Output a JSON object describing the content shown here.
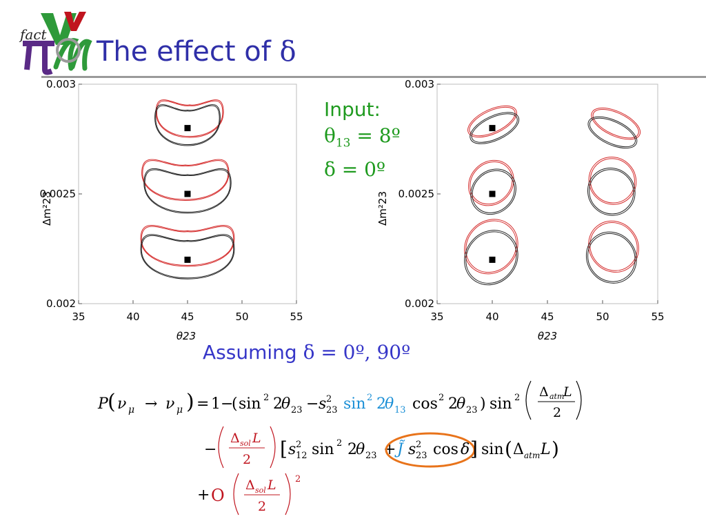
{
  "slide": {
    "title_prefix": "The effect of ",
    "title_symbol": "δ",
    "logo_text": "fact",
    "colors": {
      "title": "#2f2fa8",
      "accent_red": "#c0141e",
      "input_green": "#1e9a1e",
      "sin_highlight": "#1a8fd6",
      "circle_orange": "#e8731a",
      "rule": "#9a9a9a"
    }
  },
  "input": {
    "heading": "Input:",
    "theta_symbol": "θ",
    "theta_sub": "13",
    "theta_rest": " = 8º",
    "delta_line": "δ = 0º"
  },
  "assuming": {
    "label": "Assuming ",
    "math": "δ =  0º, 90º"
  },
  "chart_data": [
    {
      "type": "scatter",
      "title": "",
      "xlabel": "θ23",
      "ylabel": "Δm²23",
      "xlim": [
        35,
        55
      ],
      "ylim": [
        0.002,
        0.003
      ],
      "xticks": [
        "35",
        "40",
        "45",
        "50",
        "55"
      ],
      "yticks": [
        "0.002",
        "0.0025",
        "0.003"
      ],
      "points": [
        {
          "x": 45,
          "y": 0.0028
        },
        {
          "x": 45,
          "y": 0.0025
        },
        {
          "x": 45,
          "y": 0.0022
        }
      ],
      "contours": [
        {
          "color": "red",
          "shape": "bean",
          "cx": 45.2,
          "cy": 0.00284,
          "rx": 3.1,
          "ry": 0.00011
        },
        {
          "color": "black",
          "shape": "bean",
          "cx": 45.0,
          "cy": 0.00281,
          "rx": 3.0,
          "ry": 0.00012
        },
        {
          "color": "red",
          "shape": "bean",
          "cx": 44.8,
          "cy": 0.00256,
          "rx": 4.0,
          "ry": 0.00012
        },
        {
          "color": "black",
          "shape": "bean",
          "cx": 45.0,
          "cy": 0.00251,
          "rx": 4.0,
          "ry": 0.00013
        },
        {
          "color": "red",
          "shape": "bean",
          "cx": 45.0,
          "cy": 0.00226,
          "rx": 4.3,
          "ry": 0.00012
        },
        {
          "color": "black",
          "shape": "bean",
          "cx": 45.0,
          "cy": 0.00221,
          "rx": 4.3,
          "ry": 0.00013
        }
      ]
    },
    {
      "type": "scatter",
      "title": "",
      "xlabel": "θ23",
      "ylabel": "Δm²23",
      "xlim": [
        35,
        55
      ],
      "ylim": [
        0.002,
        0.003
      ],
      "xticks": [
        "35",
        "40",
        "45",
        "50",
        "55"
      ],
      "yticks": [
        "0.002",
        "0.0025",
        "0.003"
      ],
      "points": [
        {
          "x": 40,
          "y": 0.0028
        },
        {
          "x": 40,
          "y": 0.0025
        },
        {
          "x": 40,
          "y": 0.0022
        }
      ],
      "contours": [
        {
          "color": "red",
          "cx": 40.0,
          "cy": 0.00283,
          "rx": 1.1,
          "ry": 0.00012,
          "angle": 65
        },
        {
          "color": "black",
          "cx": 40.2,
          "cy": 0.0028,
          "rx": 1.1,
          "ry": 0.00012,
          "angle": 65
        },
        {
          "color": "red",
          "cx": 51.2,
          "cy": 0.00282,
          "rx": 1.1,
          "ry": 0.00012,
          "angle": -65
        },
        {
          "color": "black",
          "cx": 50.9,
          "cy": 0.00278,
          "rx": 1.1,
          "ry": 0.00012,
          "angle": -65
        },
        {
          "color": "red",
          "cx": 39.9,
          "cy": 0.00255,
          "rx": 1.9,
          "ry": 0.00011,
          "angle": 45
        },
        {
          "color": "black",
          "cx": 40.1,
          "cy": 0.00251,
          "rx": 1.9,
          "ry": 0.00011,
          "angle": 45
        },
        {
          "color": "red",
          "cx": 50.9,
          "cy": 0.00256,
          "rx": 2.1,
          "ry": 0.00011,
          "angle": -45
        },
        {
          "color": "black",
          "cx": 50.8,
          "cy": 0.00251,
          "rx": 2.1,
          "ry": 0.00011,
          "angle": -45
        },
        {
          "color": "red",
          "cx": 39.9,
          "cy": 0.00226,
          "rx": 2.3,
          "ry": 0.00013,
          "angle": 40
        },
        {
          "color": "black",
          "cx": 39.9,
          "cy": 0.00221,
          "rx": 2.3,
          "ry": 0.00013,
          "angle": 40
        },
        {
          "color": "red",
          "cx": 51.0,
          "cy": 0.00226,
          "rx": 2.2,
          "ry": 0.00012,
          "angle": -38
        },
        {
          "color": "black",
          "cx": 50.8,
          "cy": 0.00221,
          "rx": 2.2,
          "ry": 0.00012,
          "angle": -38
        }
      ]
    }
  ],
  "formula": {
    "line1": {
      "lhs_P": "P",
      "nu": "ν",
      "mu": "μ",
      "arrow": "→",
      "eq": "=",
      "one": "1",
      "minus": "−",
      "sin": "sin",
      "cos": "cos",
      "sq": "2",
      "two": "2",
      "theta": "θ",
      "sub23": "23",
      "sub13": "13",
      "s": "s",
      "delta_cap": "Δ",
      "atm": "atm",
      "L": "L"
    },
    "line2": {
      "minus": "−",
      "delta_cap": "Δ",
      "sol": "sol",
      "L": "L",
      "two": "2",
      "s": "s",
      "sub12": "12",
      "sub23": "23",
      "sq": "2",
      "sin": "sin",
      "theta": "θ",
      "plus": "+",
      "J": "J̃",
      "cos": "cos",
      "delta": "δ",
      "atm": "atm"
    },
    "line3": {
      "plus": "+",
      "order": "O",
      "delta_cap": "Δ",
      "sol": "sol",
      "L": "L",
      "two": "2",
      "power": "2"
    }
  }
}
